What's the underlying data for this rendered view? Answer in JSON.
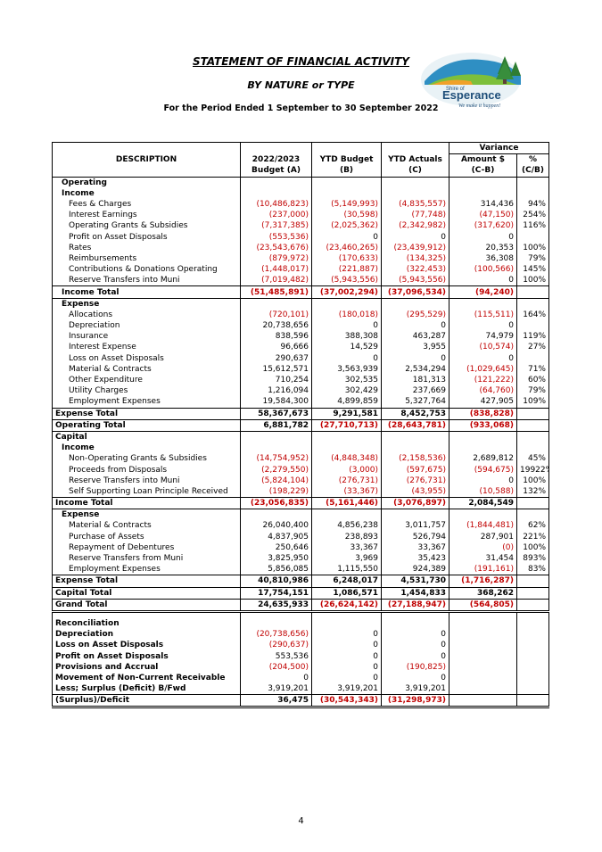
{
  "header": {
    "title": "STATEMENT OF FINANCIAL ACTIVITY",
    "subtitle": "BY NATURE or TYPE",
    "period": "For the Period Ended 1 September to 30 September 2022",
    "logo": {
      "line1": "Shire of",
      "line2": "Esperance",
      "tagline": "We make it happen!"
    }
  },
  "columns": {
    "description": "DESCRIPTION",
    "budget_l1": "2022/2023",
    "budget_l2": "Budget (A)",
    "ytd_budget_l1": "YTD Budget",
    "ytd_budget_l2": "(B)",
    "ytd_actuals_l1": "YTD Actuals",
    "ytd_actuals_l2": "(C)",
    "variance": "Variance",
    "amount_l1": "Amount $",
    "amount_l2": "(C-B)",
    "pct_l1": "%",
    "pct_l2": "(C/B)"
  },
  "rows": [
    {
      "t": "head",
      "label": "Operating",
      "indent": 1
    },
    {
      "t": "head",
      "label": "Income",
      "indent": 1
    },
    {
      "t": "item",
      "label": "Fees & Charges",
      "v": [
        "(10,486,823)",
        "(5,149,993)",
        "(4,835,557)",
        "314,436",
        "94%"
      ]
    },
    {
      "t": "item",
      "label": "Interest Earnings",
      "v": [
        "(237,000)",
        "(30,598)",
        "(77,748)",
        "(47,150)",
        "254%"
      ]
    },
    {
      "t": "item",
      "label": "Operating Grants & Subsidies",
      "v": [
        "(7,317,385)",
        "(2,025,362)",
        "(2,342,982)",
        "(317,620)",
        "116%"
      ]
    },
    {
      "t": "item",
      "label": "Profit on Asset Disposals",
      "v": [
        "(553,536)",
        "0",
        "0",
        "0",
        ""
      ]
    },
    {
      "t": "item",
      "label": "Rates",
      "v": [
        "(23,543,676)",
        "(23,460,265)",
        "(23,439,912)",
        "20,353",
        "100%"
      ]
    },
    {
      "t": "item",
      "label": "Reimbursements",
      "v": [
        "(879,972)",
        "(170,633)",
        "(134,325)",
        "36,308",
        "79%"
      ]
    },
    {
      "t": "item",
      "label": "Contributions & Donations Operating",
      "v": [
        "(1,448,017)",
        "(221,887)",
        "(322,453)",
        "(100,566)",
        "145%"
      ]
    },
    {
      "t": "item",
      "label": "Reserve Transfers into Muni",
      "v": [
        "(7,019,482)",
        "(5,943,556)",
        "(5,943,556)",
        "0",
        "100%"
      ]
    },
    {
      "t": "sub",
      "label": "Income  Total",
      "indent": 1,
      "v": [
        "(51,485,891)",
        "(37,002,294)",
        "(37,096,534)",
        "(94,240)",
        ""
      ]
    },
    {
      "t": "head",
      "label": "Expense",
      "indent": 1
    },
    {
      "t": "item",
      "label": "Allocations",
      "v": [
        "(720,101)",
        "(180,018)",
        "(295,529)",
        "(115,511)",
        "164%"
      ]
    },
    {
      "t": "item",
      "label": "Depreciation",
      "v": [
        "20,738,656",
        "0",
        "0",
        "0",
        ""
      ]
    },
    {
      "t": "item",
      "label": "Insurance",
      "v": [
        "838,596",
        "388,308",
        "463,287",
        "74,979",
        "119%"
      ]
    },
    {
      "t": "item",
      "label": "Interest Expense",
      "v": [
        "96,666",
        "14,529",
        "3,955",
        "(10,574)",
        "27%"
      ]
    },
    {
      "t": "item",
      "label": "Loss on Asset Disposals",
      "v": [
        "290,637",
        "0",
        "0",
        "0",
        ""
      ]
    },
    {
      "t": "item",
      "label": "Material & Contracts",
      "v": [
        "15,612,571",
        "3,563,939",
        "2,534,294",
        "(1,029,645)",
        "71%"
      ]
    },
    {
      "t": "item",
      "label": "Other Expenditure",
      "v": [
        "710,254",
        "302,535",
        "181,313",
        "(121,222)",
        "60%"
      ]
    },
    {
      "t": "item",
      "label": "Utility Charges",
      "v": [
        "1,216,094",
        "302,429",
        "237,669",
        "(64,760)",
        "79%"
      ]
    },
    {
      "t": "item",
      "label": "Employment Expenses",
      "v": [
        "19,584,300",
        "4,899,859",
        "5,327,764",
        "427,905",
        "109%"
      ]
    },
    {
      "t": "sub",
      "label": "Expense  Total",
      "indent": 0,
      "v": [
        "58,367,673",
        "9,291,581",
        "8,452,753",
        "(838,828)",
        ""
      ]
    },
    {
      "t": "sub",
      "label": "Operating  Total",
      "indent": 0,
      "v": [
        "6,881,782",
        "(27,710,713)",
        "(28,643,781)",
        "(933,068)",
        ""
      ]
    },
    {
      "t": "head",
      "label": "Capital",
      "indent": 0
    },
    {
      "t": "head",
      "label": "Income",
      "indent": 1
    },
    {
      "t": "item",
      "label": "Non-Operating Grants & Subsidies",
      "v": [
        "(14,754,952)",
        "(4,848,348)",
        "(2,158,536)",
        "2,689,812",
        "45%"
      ]
    },
    {
      "t": "item",
      "label": "Proceeds from Disposals",
      "v": [
        "(2,279,550)",
        "(3,000)",
        "(597,675)",
        "(594,675)",
        "19922%"
      ]
    },
    {
      "t": "item",
      "label": "Reserve Transfers into Muni",
      "v": [
        "(5,824,104)",
        "(276,731)",
        "(276,731)",
        "0",
        "100%"
      ]
    },
    {
      "t": "item",
      "label": "Self Supporting Loan Principle Received",
      "v": [
        "(198,229)",
        "(33,367)",
        "(43,955)",
        "(10,588)",
        "132%"
      ]
    },
    {
      "t": "sub",
      "label": "Income  Total",
      "indent": 0,
      "v": [
        "(23,056,835)",
        "(5,161,446)",
        "(3,076,897)",
        "2,084,549",
        ""
      ]
    },
    {
      "t": "head",
      "label": "Expense",
      "indent": 1
    },
    {
      "t": "item",
      "label": "Material & Contracts",
      "v": [
        "26,040,400",
        "4,856,238",
        "3,011,757",
        "(1,844,481)",
        "62%"
      ]
    },
    {
      "t": "item",
      "label": "Purchase of Assets",
      "v": [
        "4,837,905",
        "238,893",
        "526,794",
        "287,901",
        "221%"
      ]
    },
    {
      "t": "item",
      "label": "Repayment of Debentures",
      "v": [
        "250,646",
        "33,367",
        "33,367",
        "(0)",
        "100%"
      ]
    },
    {
      "t": "item",
      "label": "Reserve Transfers from Muni",
      "v": [
        "3,825,950",
        "3,969",
        "35,423",
        "31,454",
        "893%"
      ]
    },
    {
      "t": "item",
      "label": "Employment Expenses",
      "v": [
        "5,856,085",
        "1,115,550",
        "924,389",
        "(191,161)",
        "83%"
      ]
    },
    {
      "t": "sub",
      "label": "Expense  Total",
      "indent": 0,
      "v": [
        "40,810,986",
        "6,248,017",
        "4,531,730",
        "(1,716,287)",
        ""
      ]
    },
    {
      "t": "sub",
      "label": "Capital Total",
      "indent": 0,
      "v": [
        "17,754,151",
        "1,086,571",
        "1,454,833",
        "368,262",
        ""
      ]
    },
    {
      "t": "sub",
      "label": "Grand Total",
      "indent": 0,
      "v": [
        "24,635,933",
        "(26,624,142)",
        "(27,188,947)",
        "(564,805)",
        ""
      ]
    },
    {
      "t": "spacer"
    },
    {
      "t": "head",
      "label": "Reconciliation",
      "indent": 0
    },
    {
      "t": "recon",
      "label": "Depreciation",
      "v": [
        "(20,738,656)",
        "0",
        "0",
        "",
        ""
      ]
    },
    {
      "t": "recon",
      "label": "Loss on Asset Disposals",
      "v": [
        "(290,637)",
        "0",
        "0",
        "",
        ""
      ]
    },
    {
      "t": "recon",
      "label": "Profit on Asset Disposals",
      "v": [
        "553,536",
        "0",
        "0",
        "",
        ""
      ]
    },
    {
      "t": "recon",
      "label": "Provisions and Accrual",
      "v": [
        "(204,500)",
        "0",
        "(190,825)",
        "",
        ""
      ]
    },
    {
      "t": "recon",
      "label": "Movement of Non-Current Receivable",
      "v": [
        "0",
        "0",
        "0",
        "",
        ""
      ]
    },
    {
      "t": "recon",
      "label": "Less; Surplus (Deficit) B/Fwd",
      "v": [
        "3,919,201",
        "3,919,201",
        "3,919,201",
        "",
        ""
      ]
    },
    {
      "t": "sub",
      "label": "(Surplus)/Deficit",
      "indent": 0,
      "v": [
        "36,475",
        "(30,543,343)",
        "(31,298,973)",
        "",
        ""
      ]
    }
  ],
  "footer": {
    "page_number": "4"
  }
}
